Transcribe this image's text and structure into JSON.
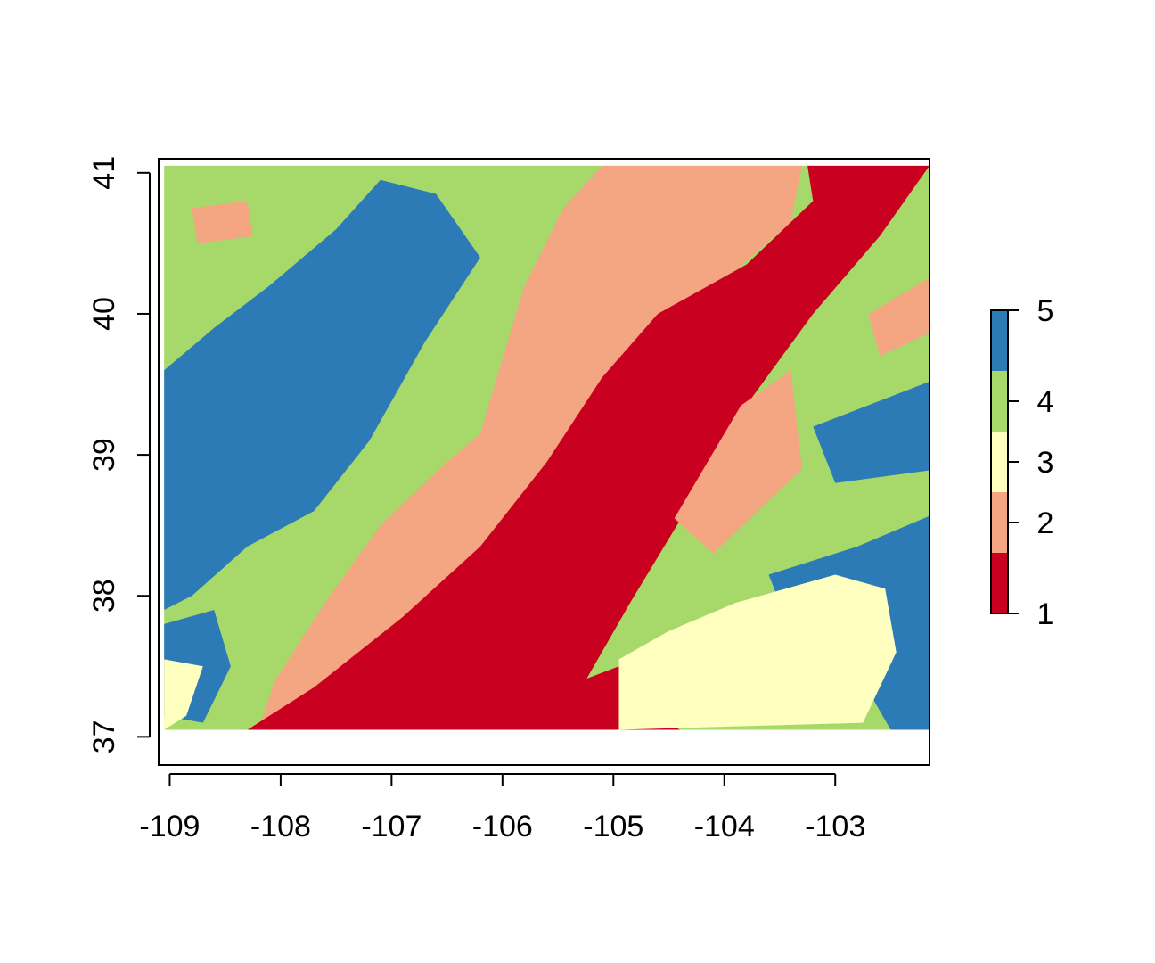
{
  "chart_data": {
    "type": "heatmap",
    "title": "",
    "xlabel": "",
    "ylabel": "",
    "xlim": [
      -109.1,
      -102.15
    ],
    "ylim": [
      36.8,
      41.1
    ],
    "data_extent": {
      "x": [
        -109.05,
        -102.05
      ],
      "y": [
        37.05,
        41.05
      ]
    },
    "x_ticks": [
      {
        "value": -109,
        "label": "-109"
      },
      {
        "value": -108,
        "label": "-108"
      },
      {
        "value": -107,
        "label": "-107"
      },
      {
        "value": -106,
        "label": "-106"
      },
      {
        "value": -105,
        "label": "-105"
      },
      {
        "value": -104,
        "label": "-104"
      },
      {
        "value": -103,
        "label": "-103"
      }
    ],
    "y_ticks": [
      {
        "value": 37,
        "label": "37"
      },
      {
        "value": 38,
        "label": "38"
      },
      {
        "value": 39,
        "label": "39"
      },
      {
        "value": 40,
        "label": "40"
      },
      {
        "value": 41,
        "label": "41"
      }
    ],
    "classes": [
      {
        "value": 1,
        "color": "#ca0020"
      },
      {
        "value": 2,
        "color": "#f4a582"
      },
      {
        "value": 3,
        "color": "#ffffbf"
      },
      {
        "value": 4,
        "color": "#a6d96a"
      },
      {
        "value": 5,
        "color": "#2c7bb6"
      }
    ],
    "legend": {
      "placement": "right",
      "ticks": [
        {
          "value": 1,
          "label": "1"
        },
        {
          "value": 2,
          "label": "2"
        },
        {
          "value": 3,
          "label": "3"
        },
        {
          "value": 4,
          "label": "4"
        },
        {
          "value": 5,
          "label": "5"
        }
      ]
    },
    "regions": [
      {
        "class": 4,
        "polygon": [
          [
            -109.05,
            41.05
          ],
          [
            -102.05,
            41.05
          ],
          [
            -102.05,
            37.05
          ],
          [
            -109.05,
            37.05
          ]
        ]
      },
      {
        "class": 5,
        "polygon": [
          [
            -109.05,
            39.6
          ],
          [
            -108.6,
            39.9
          ],
          [
            -108.1,
            40.2
          ],
          [
            -107.5,
            40.6
          ],
          [
            -107.1,
            40.95
          ],
          [
            -106.6,
            40.85
          ],
          [
            -106.2,
            40.4
          ],
          [
            -106.7,
            39.8
          ],
          [
            -107.2,
            39.1
          ],
          [
            -107.7,
            38.6
          ],
          [
            -108.3,
            38.35
          ],
          [
            -108.8,
            38.0
          ],
          [
            -109.05,
            37.9
          ]
        ]
      },
      {
        "class": 5,
        "polygon": [
          [
            -109.05,
            37.8
          ],
          [
            -108.6,
            37.9
          ],
          [
            -108.45,
            37.5
          ],
          [
            -108.7,
            37.1
          ],
          [
            -109.05,
            37.15
          ]
        ]
      },
      {
        "class": 5,
        "polygon": [
          [
            -107.85,
            40.25
          ],
          [
            -107.3,
            40.3
          ],
          [
            -107.25,
            39.95
          ],
          [
            -107.75,
            39.9
          ]
        ]
      },
      {
        "class": 5,
        "polygon": [
          [
            -103.6,
            38.15
          ],
          [
            -102.8,
            38.35
          ],
          [
            -102.05,
            38.6
          ],
          [
            -102.05,
            37.05
          ],
          [
            -102.5,
            37.05
          ],
          [
            -102.9,
            37.6
          ],
          [
            -103.5,
            37.95
          ]
        ]
      },
      {
        "class": 5,
        "polygon": [
          [
            -103.2,
            39.2
          ],
          [
            -102.05,
            39.55
          ],
          [
            -102.05,
            38.9
          ],
          [
            -103.0,
            38.8
          ]
        ]
      },
      {
        "class": 2,
        "polygon": [
          [
            -108.8,
            40.75
          ],
          [
            -108.3,
            40.8
          ],
          [
            -108.25,
            40.55
          ],
          [
            -108.75,
            40.5
          ]
        ]
      },
      {
        "class": 2,
        "polygon": [
          [
            -108.2,
            37.05
          ],
          [
            -108.05,
            37.4
          ],
          [
            -107.6,
            37.95
          ],
          [
            -107.1,
            38.5
          ],
          [
            -106.5,
            38.95
          ],
          [
            -106.2,
            39.15
          ],
          [
            -106.05,
            39.55
          ],
          [
            -105.8,
            40.2
          ],
          [
            -105.45,
            40.75
          ],
          [
            -105.1,
            41.05
          ],
          [
            -103.3,
            41.05
          ],
          [
            -103.4,
            40.65
          ],
          [
            -104.2,
            40.1
          ],
          [
            -104.6,
            39.8
          ],
          [
            -104.9,
            39.2
          ],
          [
            -105.3,
            38.6
          ],
          [
            -105.7,
            38.0
          ],
          [
            -106.1,
            37.5
          ],
          [
            -106.4,
            37.05
          ]
        ]
      },
      {
        "class": 1,
        "polygon": [
          [
            -108.3,
            37.05
          ],
          [
            -107.7,
            37.35
          ],
          [
            -106.9,
            37.85
          ],
          [
            -106.2,
            38.35
          ],
          [
            -105.6,
            38.95
          ],
          [
            -105.1,
            39.55
          ],
          [
            -104.6,
            40.0
          ],
          [
            -103.8,
            40.35
          ],
          [
            -103.2,
            40.8
          ],
          [
            -103.25,
            41.05
          ],
          [
            -102.15,
            41.05
          ],
          [
            -102.6,
            40.55
          ],
          [
            -103.2,
            40.0
          ],
          [
            -103.85,
            39.3
          ],
          [
            -104.35,
            38.6
          ],
          [
            -104.85,
            37.95
          ],
          [
            -105.25,
            37.4
          ],
          [
            -105.5,
            37.05
          ]
        ]
      },
      {
        "class": 2,
        "polygon": [
          [
            -104.45,
            38.55
          ],
          [
            -103.85,
            39.35
          ],
          [
            -103.4,
            39.6
          ],
          [
            -103.3,
            38.9
          ],
          [
            -103.7,
            38.6
          ],
          [
            -104.1,
            38.3
          ]
        ]
      },
      {
        "class": 2,
        "polygon": [
          [
            -102.7,
            40.0
          ],
          [
            -102.05,
            40.3
          ],
          [
            -102.05,
            39.9
          ],
          [
            -102.6,
            39.7
          ]
        ]
      },
      {
        "class": 1,
        "polygon": [
          [
            -105.7,
            37.05
          ],
          [
            -105.45,
            37.35
          ],
          [
            -104.95,
            37.5
          ],
          [
            -104.95,
            37.3
          ],
          [
            -104.4,
            37.05
          ]
        ]
      },
      {
        "class": 3,
        "polygon": [
          [
            -104.95,
            37.05
          ],
          [
            -104.95,
            37.55
          ],
          [
            -104.5,
            37.75
          ],
          [
            -103.9,
            37.95
          ],
          [
            -103.0,
            38.15
          ],
          [
            -102.55,
            38.05
          ],
          [
            -102.45,
            37.6
          ],
          [
            -102.75,
            37.1
          ]
        ]
      },
      {
        "class": 3,
        "polygon": [
          [
            -109.05,
            37.05
          ],
          [
            -108.85,
            37.15
          ],
          [
            -108.7,
            37.5
          ],
          [
            -109.05,
            37.55
          ]
        ]
      }
    ]
  }
}
